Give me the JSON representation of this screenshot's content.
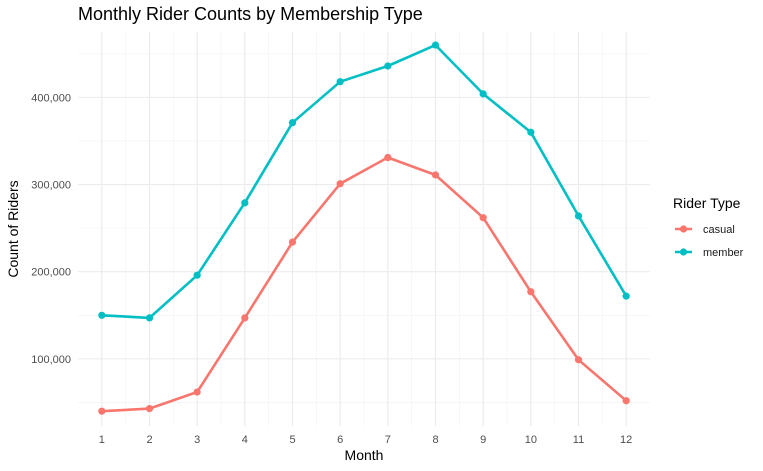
{
  "chart_data": {
    "type": "line",
    "title": "Monthly Rider Counts by Membership Type",
    "xlabel": "Month",
    "ylabel": "Count of Riders",
    "x": [
      1,
      2,
      3,
      4,
      5,
      6,
      7,
      8,
      9,
      10,
      11,
      12
    ],
    "x_tick_labels": [
      "1",
      "2",
      "3",
      "4",
      "5",
      "6",
      "7",
      "8",
      "9",
      "10",
      "11",
      "12"
    ],
    "xlim": [
      0.5,
      12.5
    ],
    "ylim": [
      23000,
      475000
    ],
    "y_ticks": [
      100000,
      200000,
      300000,
      400000
    ],
    "y_tick_labels": [
      "100,000",
      "200,000",
      "300,000",
      "400,000"
    ],
    "grid": true,
    "legend": {
      "title": "Rider Type",
      "position": "right"
    },
    "series": [
      {
        "name": "casual",
        "color": "#f8766d",
        "values": [
          40000,
          43000,
          62000,
          147000,
          234000,
          301000,
          331000,
          311000,
          262000,
          177000,
          99000,
          52000
        ]
      },
      {
        "name": "member",
        "color": "#00bfc4",
        "values": [
          150000,
          147000,
          196000,
          279000,
          371000,
          418000,
          436000,
          460000,
          404000,
          360000,
          264000,
          172000
        ]
      }
    ]
  }
}
